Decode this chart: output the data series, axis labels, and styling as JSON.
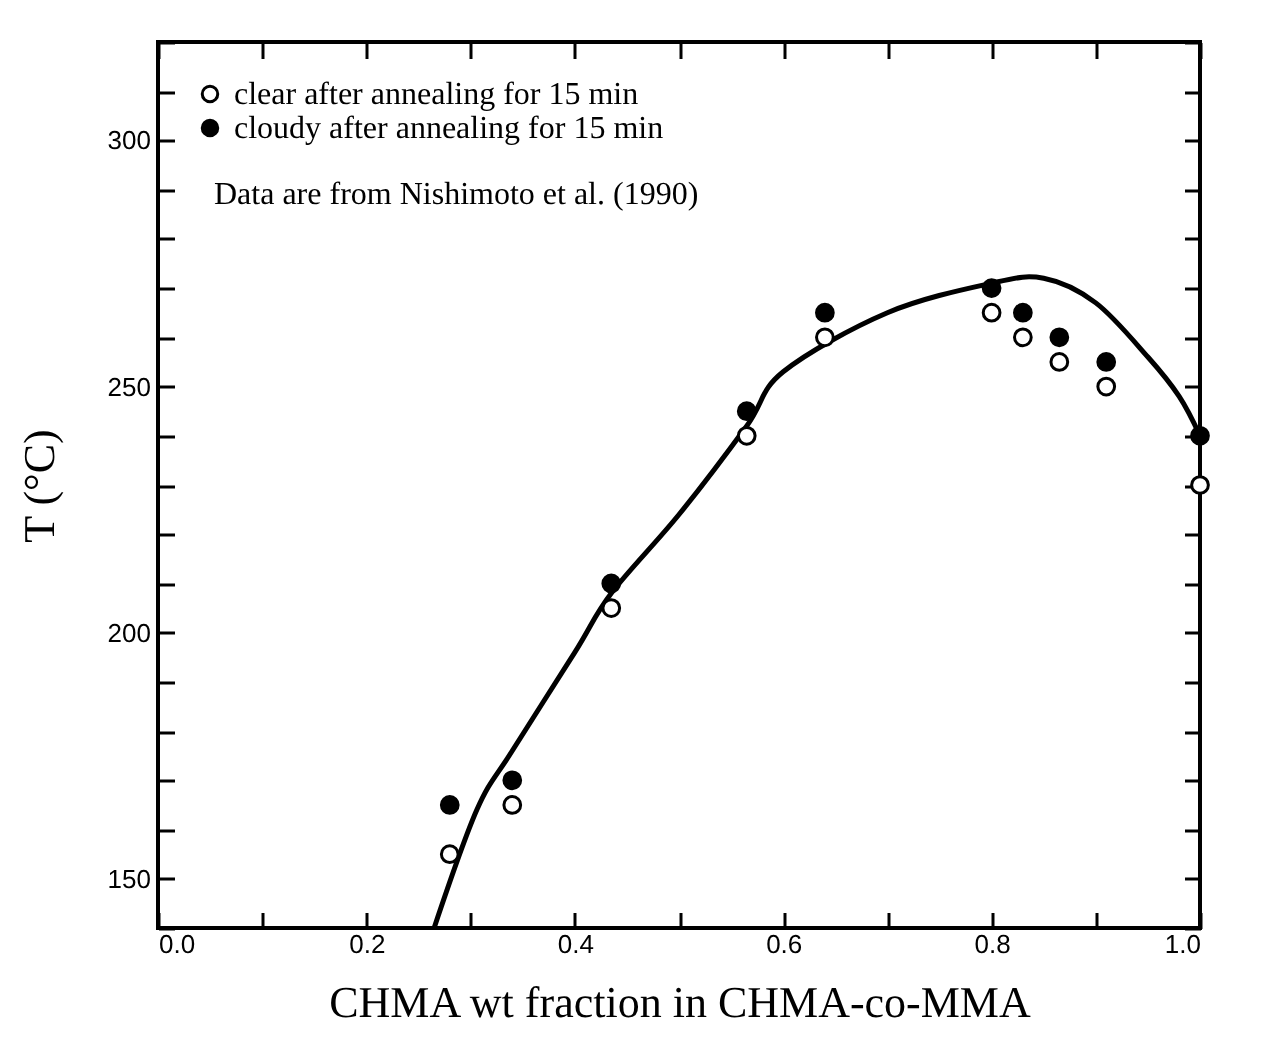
{
  "chart_data": {
    "type": "scatter",
    "xlabel": "CHMA wt fraction in CHMA-co-MMA",
    "ylabel": "T (°C)",
    "xlim": [
      0,
      1
    ],
    "ylim": [
      140,
      320
    ],
    "xticks": [
      {
        "value": 0,
        "label": "0.0"
      },
      {
        "value": 0.1,
        "label": null
      },
      0.2,
      {
        "value": 0.3,
        "label": null
      },
      0.4,
      {
        "value": 0.5,
        "label": null
      },
      0.6,
      {
        "value": 0.7,
        "label": null
      },
      0.8,
      {
        "value": 0.9,
        "label": null
      },
      {
        "value": 1,
        "label": "1.0"
      }
    ],
    "yticks": [
      {
        "value": 140,
        "label": null
      },
      150,
      {
        "value": 160,
        "label": null
      },
      {
        "value": 170,
        "label": null
      },
      {
        "value": 180,
        "label": null
      },
      {
        "value": 190,
        "label": null
      },
      200,
      {
        "value": 210,
        "label": null
      },
      {
        "value": 220,
        "label": null
      },
      {
        "value": 230,
        "label": null
      },
      {
        "value": 240,
        "label": null
      },
      250,
      {
        "value": 260,
        "label": null
      },
      {
        "value": 270,
        "label": null
      },
      {
        "value": 280,
        "label": null
      },
      {
        "value": 290,
        "label": null
      },
      300,
      {
        "value": 310,
        "label": null
      },
      {
        "value": 320,
        "label": null
      }
    ],
    "legend": "top left",
    "grid": false,
    "annotations": [
      "Data are from Nishimoto et al. (1990)"
    ],
    "series": [
      {
        "name": "clear after annealing for 15 min",
        "color": "#000000",
        "marker": "circle",
        "x": [
          0.28,
          0.34,
          0.435,
          0.565,
          0.64,
          0.8,
          0.83,
          0.865,
          0.91,
          1.0
        ],
        "values": [
          155,
          165,
          205,
          240,
          260,
          265,
          260,
          255,
          250,
          230
        ]
      },
      {
        "name": "cloudy after annealing for 15 min",
        "color": "#000000",
        "marker": "circle",
        "x": [
          0.28,
          0.34,
          0.435,
          0.565,
          0.64,
          0.8,
          0.83,
          0.865,
          0.91,
          1.0
        ],
        "values": [
          165,
          170,
          210,
          245,
          265,
          270,
          265,
          260,
          255,
          240
        ]
      },
      {
        "type": "line",
        "color": "#000000",
        "marker": "none",
        "x": [
          0.265,
          0.306,
          0.34,
          0.4,
          0.435,
          0.5,
          0.565,
          0.6,
          0.7,
          0.8,
          0.85,
          0.9,
          0.95,
          0.98,
          1.0
        ],
        "values": [
          140,
          164,
          176,
          196,
          208,
          224,
          242,
          253,
          265,
          271,
          272,
          267,
          256,
          248,
          240
        ]
      }
    ]
  }
}
